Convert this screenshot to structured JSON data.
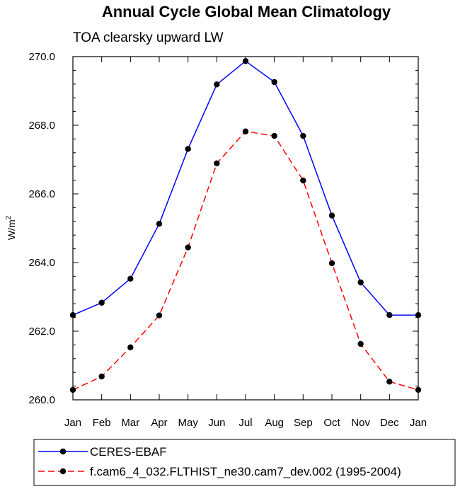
{
  "chart_data": {
    "type": "line",
    "title": "Annual Cycle Global Mean Climatology",
    "subtitle": "TOA clearsky upward LW",
    "xlabel": "",
    "ylabel": "W/m",
    "ylabel_superscript": "2",
    "categories": [
      "Jan",
      "Feb",
      "Mar",
      "Apr",
      "May",
      "Jun",
      "Jul",
      "Aug",
      "Sep",
      "Oct",
      "Nov",
      "Dec",
      "Jan"
    ],
    "ylim": [
      260.0,
      270.0
    ],
    "yticks": [
      "260.0",
      "262.0",
      "264.0",
      "266.0",
      "268.0",
      "270.0"
    ],
    "grid": false,
    "legend_position": "bottom",
    "series": [
      {
        "name": "CERES-EBAF",
        "color": "#0000ff",
        "dash": "solid",
        "values": [
          262.47,
          262.83,
          263.53,
          265.13,
          267.31,
          269.19,
          269.87,
          269.26,
          267.69,
          265.37,
          263.42,
          262.47,
          262.47
        ]
      },
      {
        "name": "f.cam6_4_032.FLTHIST_ne30.cam7_dev.002 (1995-2004)",
        "color": "#ff0000",
        "dash": "dashed",
        "values": [
          260.29,
          260.68,
          261.53,
          262.46,
          264.44,
          266.89,
          267.82,
          267.69,
          266.39,
          263.98,
          261.63,
          260.53,
          260.29
        ]
      }
    ],
    "marker_color": "#000000"
  }
}
